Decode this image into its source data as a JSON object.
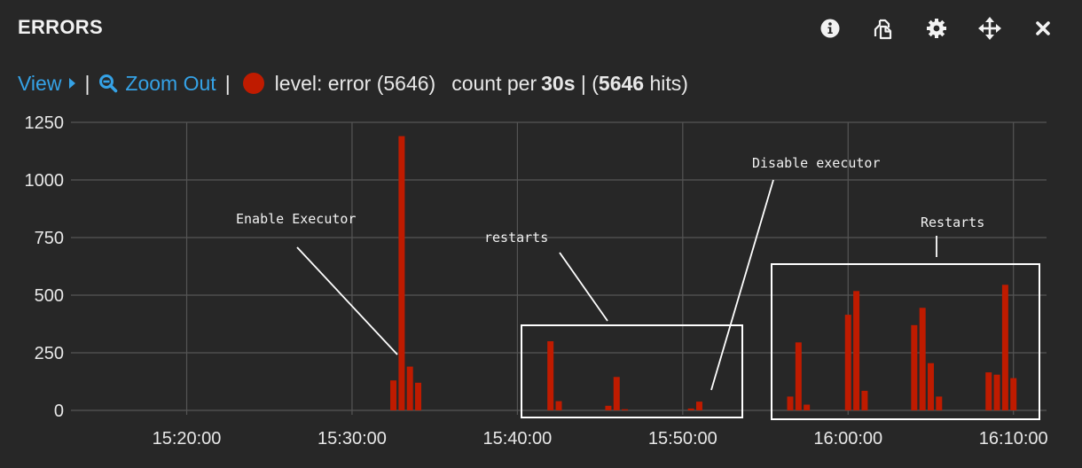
{
  "panel": {
    "title": "ERRORS",
    "icons": [
      "info-icon",
      "copy-icon",
      "gear-icon",
      "move-icon",
      "close-icon"
    ]
  },
  "toolbar": {
    "view_label": "View",
    "zoom_out_label": "Zoom Out",
    "separator": "|",
    "legend_text": "level: error (5646)",
    "count_per_prefix": "count per ",
    "interval": "30s",
    "hits_open": " | (",
    "hits_count": "5646",
    "hits_close": " hits)"
  },
  "colors": {
    "accent": "#35a2e6",
    "series": "#bf1b00",
    "background": "#272727",
    "grid": "#555555"
  },
  "chart_data": {
    "type": "bar",
    "title": "",
    "xlabel": "",
    "ylabel": "",
    "ylim": [
      0,
      1250
    ],
    "y_ticks": [
      "0",
      "250",
      "500",
      "750",
      "1000",
      "1250"
    ],
    "x_range": [
      "15:13:00",
      "16:12:00"
    ],
    "x_ticks": [
      "15:20:00",
      "15:30:00",
      "15:40:00",
      "15:50:00",
      "16:00:00",
      "16:10:00"
    ],
    "grid": true,
    "interval": "30s",
    "series": [
      {
        "name": "level: error",
        "points": [
          {
            "t": "15:32:30",
            "v": 130
          },
          {
            "t": "15:33:00",
            "v": 1190
          },
          {
            "t": "15:33:30",
            "v": 190
          },
          {
            "t": "15:34:00",
            "v": 120
          },
          {
            "t": "15:42:00",
            "v": 300
          },
          {
            "t": "15:42:30",
            "v": 40
          },
          {
            "t": "15:45:30",
            "v": 20
          },
          {
            "t": "15:46:00",
            "v": 145
          },
          {
            "t": "15:46:30",
            "v": 5
          },
          {
            "t": "15:50:30",
            "v": 8
          },
          {
            "t": "15:51:00",
            "v": 38
          },
          {
            "t": "15:56:30",
            "v": 60
          },
          {
            "t": "15:57:00",
            "v": 295
          },
          {
            "t": "15:57:30",
            "v": 25
          },
          {
            "t": "16:00:00",
            "v": 415
          },
          {
            "t": "16:00:30",
            "v": 518
          },
          {
            "t": "16:01:00",
            "v": 85
          },
          {
            "t": "16:04:00",
            "v": 370
          },
          {
            "t": "16:04:30",
            "v": 445
          },
          {
            "t": "16:05:00",
            "v": 205
          },
          {
            "t": "16:05:30",
            "v": 60
          },
          {
            "t": "16:08:30",
            "v": 165
          },
          {
            "t": "16:09:00",
            "v": 155
          },
          {
            "t": "16:09:30",
            "v": 545
          },
          {
            "t": "16:10:00",
            "v": 140
          }
        ]
      }
    ],
    "annotations": [
      {
        "text": "Enable Executor"
      },
      {
        "text": "restarts"
      },
      {
        "text": "Disable executor"
      },
      {
        "text": "Restarts"
      }
    ]
  }
}
